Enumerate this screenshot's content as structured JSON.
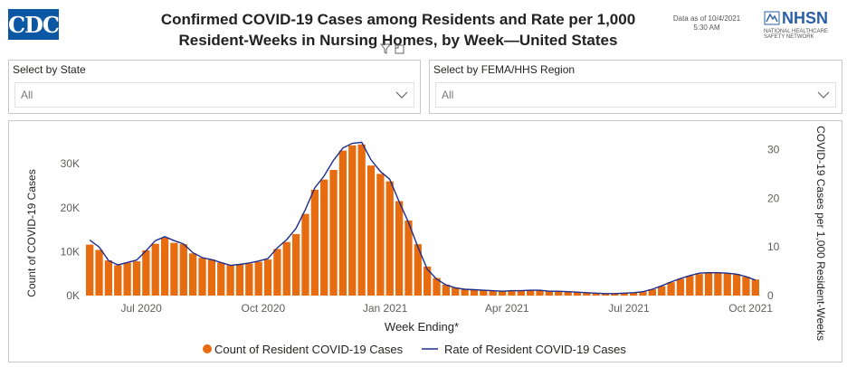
{
  "header": {
    "logo_left": "CDC",
    "title_line1": "Confirmed COVID-19 Cases among Residents and Rate per 1,000",
    "title_line2": "Resident-Weeks in Nursing Homes, by Week—United States",
    "asof_line1": "Data as of 10/4/2021",
    "asof_line2": "5:30 AM",
    "logo_right": "NHSN",
    "logo_right_sub1": "NATIONAL HEALTHCARE",
    "logo_right_sub2": "SAFETY NETWORK"
  },
  "filters": {
    "state": {
      "label": "Select by State",
      "value": "All"
    },
    "region": {
      "label": "Select by FEMA/HHS Region",
      "value": "All"
    }
  },
  "colors": {
    "bar": "#e66c0f",
    "line": "#1f2d8c",
    "cdc_blue": "#0b57a4"
  },
  "chart_data": {
    "type": "bar",
    "xlabel": "Week Ending*",
    "ylabel": "Count of COVID-19 Cases",
    "y2label": "COVID-19 Cases per 1,000 Resident-Weeks",
    "ylim": [
      0,
      36000
    ],
    "y2lim": [
      0,
      32.5
    ],
    "yticks": [
      "0K",
      "10K",
      "20K",
      "30K"
    ],
    "y2ticks": [
      "0",
      "10",
      "20",
      "30"
    ],
    "xticks": [
      "Jul 2020",
      "Oct 2020",
      "Jan 2021",
      "Apr 2021",
      "Jul 2021",
      "Oct 2021"
    ],
    "xtick_indices": [
      5.5,
      18.5,
      31.5,
      44.5,
      57.5,
      70.5
    ],
    "legend_position": "bottom",
    "series": [
      {
        "name": "Count of Resident COVID-19 Cases",
        "type": "bar",
        "values": [
          11600,
          10400,
          8000,
          6900,
          7500,
          7800,
          10300,
          11800,
          13200,
          12000,
          11700,
          9600,
          8600,
          8200,
          7500,
          6900,
          7100,
          7300,
          7700,
          8200,
          10600,
          12200,
          14000,
          18600,
          24100,
          26400,
          28600,
          33000,
          34200,
          34400,
          29600,
          27700,
          26000,
          21500,
          17100,
          11700,
          6600,
          4000,
          2500,
          1800,
          1500,
          1350,
          1250,
          1150,
          1050,
          1150,
          1100,
          1250,
          1200,
          1050,
          1000,
          950,
          800,
          650,
          520,
          450,
          480,
          550,
          650,
          900,
          1450,
          2150,
          3050,
          3800,
          4500,
          4900,
          5150,
          5150,
          5100,
          4900,
          4300,
          3650
        ]
      },
      {
        "name": "Rate of Resident COVID-19 Cases",
        "type": "line",
        "values": [
          11.4,
          10,
          7.2,
          6.3,
          6.8,
          7.3,
          9.2,
          11.3,
          12.1,
          11.3,
          10.6,
          8.8,
          7.8,
          7.4,
          6.8,
          6.2,
          6.4,
          6.7,
          7.1,
          7.6,
          9.8,
          11.5,
          13.8,
          17.7,
          22.1,
          24.6,
          27.8,
          30.3,
          31.3,
          31.5,
          27.9,
          25.5,
          23.9,
          19.3,
          15,
          10,
          5.4,
          3.4,
          2.2,
          1.6,
          1.3,
          1.2,
          1.1,
          1,
          0.9,
          1,
          1,
          1.1,
          1.1,
          0.9,
          0.9,
          0.8,
          0.7,
          0.6,
          0.5,
          0.4,
          0.4,
          0.5,
          0.6,
          0.8,
          1.3,
          2,
          2.8,
          3.5,
          4.1,
          4.6,
          4.7,
          4.7,
          4.6,
          4.4,
          3.9,
          3.2
        ]
      }
    ]
  }
}
